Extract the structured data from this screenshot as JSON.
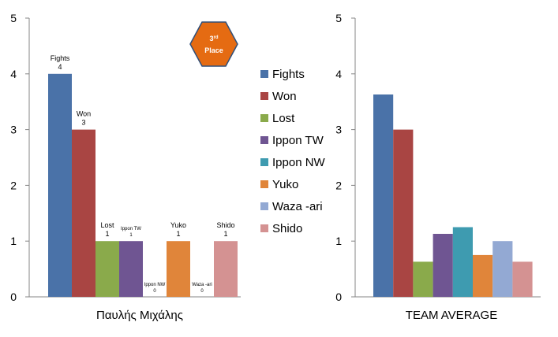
{
  "legend": {
    "placement": "center",
    "items": [
      {
        "name": "Fights",
        "color": "#4A72A8"
      },
      {
        "name": "Won",
        "color": "#A94543"
      },
      {
        "name": "Lost",
        "color": "#8AAA4B"
      },
      {
        "name": "Ippon TW",
        "color": "#6F5592"
      },
      {
        "name": "Ippon NW",
        "color": "#3E9BB0"
      },
      {
        "name": "Yuko",
        "color": "#E0853A"
      },
      {
        "name": "Waza -ari",
        "color": "#93A9D3"
      },
      {
        "name": "Shido",
        "color": "#D49292"
      }
    ]
  },
  "badge": {
    "line1": "3",
    "sup": "rd",
    "line2": "Place",
    "color": "#E56B12"
  },
  "chart_data": [
    {
      "type": "bar",
      "xlabel": "Παυλής Μιχάλης",
      "ylim": [
        0,
        5
      ],
      "yticks": [
        0,
        1,
        2,
        3,
        4,
        5
      ],
      "grid": false,
      "categories": [
        "Fights",
        "Won",
        "Lost",
        "Ippon TW",
        "Ippon NW",
        "Yuko",
        "Waza -ari",
        "Shido"
      ],
      "values": [
        4,
        3,
        1,
        1,
        0,
        1,
        0,
        1
      ],
      "data_labels": [
        {
          "name": "Fights",
          "value": "4"
        },
        {
          "name": "Won",
          "value": "3"
        },
        {
          "name": "Lost",
          "value": "1"
        },
        {
          "name": "Ippon TW",
          "value": "1"
        },
        {
          "name": "Ippon NW",
          "value": "0"
        },
        {
          "name": "Yuko",
          "value": "1"
        },
        {
          "name": "Waza -ari",
          "value": "0"
        },
        {
          "name": "Shido",
          "value": "1"
        }
      ]
    },
    {
      "type": "bar",
      "xlabel": "TEAM AVERAGE",
      "ylim": [
        0,
        5
      ],
      "yticks": [
        0,
        1,
        2,
        3,
        4,
        5
      ],
      "grid": false,
      "categories": [
        "Fights",
        "Won",
        "Lost",
        "Ippon TW",
        "Ippon NW",
        "Yuko",
        "Waza -ari",
        "Shido"
      ],
      "values": [
        3.63,
        3.0,
        0.63,
        1.13,
        1.25,
        0.75,
        1.0,
        0.63
      ]
    }
  ]
}
